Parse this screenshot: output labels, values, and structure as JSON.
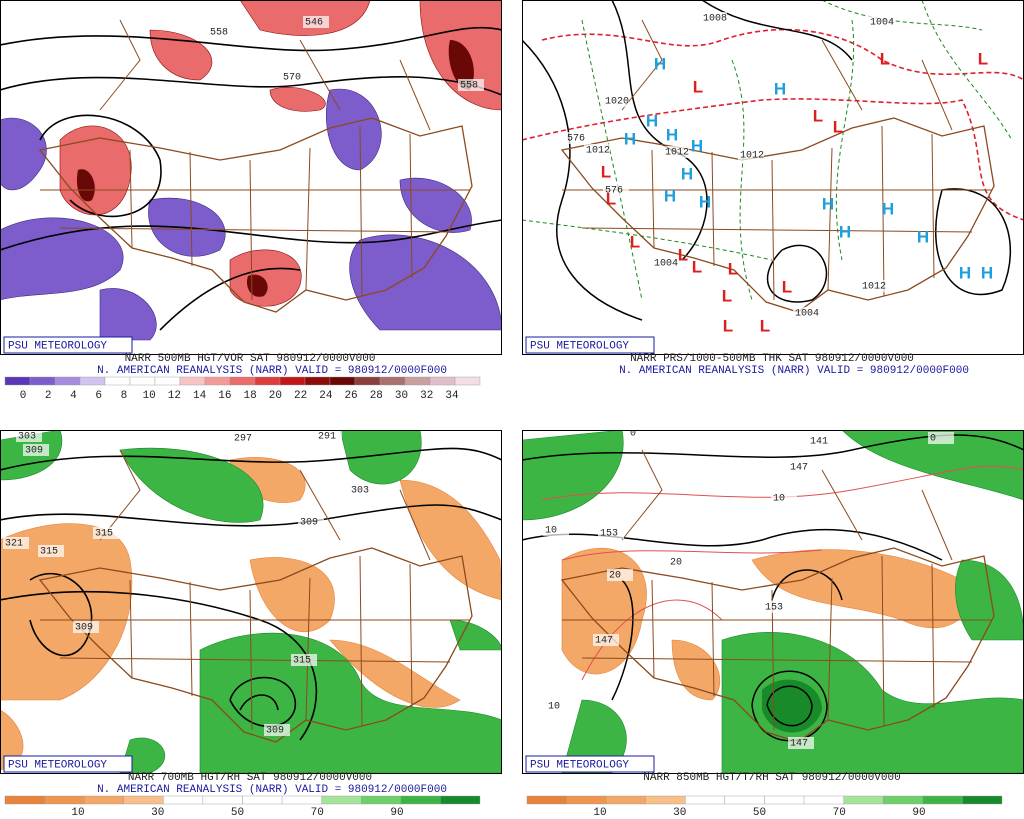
{
  "panels": [
    {
      "brand": "PSU METEOROLOGY",
      "line1": "NARR 500MB HGT/VOR SAT 980912/0000V000",
      "line2": "N. AMERICAN REANALYSIS (NARR) VALID = 980912/0000F000",
      "colorbar": {
        "ticks": [
          0,
          2,
          4,
          6,
          8,
          10,
          12,
          14,
          16,
          18,
          20,
          22,
          24,
          26,
          28,
          30,
          32,
          34
        ],
        "colors": [
          "#5a36b8",
          "#7d5ccc",
          "#a58de0",
          "#d0c4f0",
          "#ffffff",
          "#ffffff",
          "#ffffff",
          "#f7c4c4",
          "#f29a9a",
          "#ea6b6b",
          "#dc3e3e",
          "#c01818",
          "#8c0c0c",
          "#6a0808",
          "#8a3f3f",
          "#a87070",
          "#c8a0a0",
          "#e0c0c8",
          "#f4dde4"
        ]
      },
      "contour_labels": [
        "546",
        "558",
        "570",
        "558"
      ]
    },
    {
      "brand": "PSU METEOROLOGY",
      "line1": "NARR PRS/1000-500MB THK SAT 980912/0000V000",
      "line2": "N. AMERICAN REANALYSIS (NARR) VALID = 980912/0000F000",
      "contour_labels": [
        "1008",
        "1004",
        "1020",
        "576",
        "1012",
        "1012",
        "1012",
        "576",
        "1004",
        "1004",
        "1012"
      ],
      "center_colors": {
        "H": "#1ea0dc",
        "L": "#dc1e1e"
      },
      "pressure_centers": [
        "H",
        "L",
        "H",
        "L",
        "L",
        "L",
        "L",
        "H",
        "H",
        "H",
        "H",
        "L",
        "L",
        "H",
        "H",
        "H",
        "H",
        "H",
        "H",
        "H",
        "L",
        "L",
        "L",
        "L",
        "L",
        "L",
        "L",
        "L",
        "H",
        "H"
      ]
    },
    {
      "brand": "PSU METEOROLOGY",
      "line1": "NARR 700MB HGT/RH SAT 980912/0000V000",
      "line2": "N. AMERICAN REANALYSIS (NARR) VALID = 980912/0000F000",
      "colorbar": {
        "ticks": [
          10,
          30,
          50,
          70,
          90
        ],
        "colors": [
          "#e8833a",
          "#f09550",
          "#f4a868",
          "#f8bf88",
          "#ffffff",
          "#ffffff",
          "#ffffff",
          "#ffffff",
          "#a6e39a",
          "#6ed06b",
          "#3cb544",
          "#188a2a"
        ]
      },
      "contour_labels": [
        "303",
        "309",
        "297",
        "291",
        "303",
        "309",
        "321",
        "315",
        "315",
        "309",
        "315",
        "309"
      ]
    },
    {
      "brand": "PSU METEOROLOGY",
      "line1": "NARR 850MB HGT/T/RH SAT 980912/0000V000",
      "colorbar": {
        "ticks": [
          10,
          30,
          50,
          70,
          90
        ],
        "colors": [
          "#e8833a",
          "#f09550",
          "#f4a868",
          "#f8bf88",
          "#ffffff",
          "#ffffff",
          "#ffffff",
          "#ffffff",
          "#a6e39a",
          "#6ed06b",
          "#3cb544",
          "#188a2a"
        ]
      },
      "contour_labels": [
        "141",
        "147",
        "153",
        "147",
        "153",
        "147",
        "10",
        "10",
        "20",
        "20",
        "10",
        "0",
        "0"
      ]
    }
  ]
}
